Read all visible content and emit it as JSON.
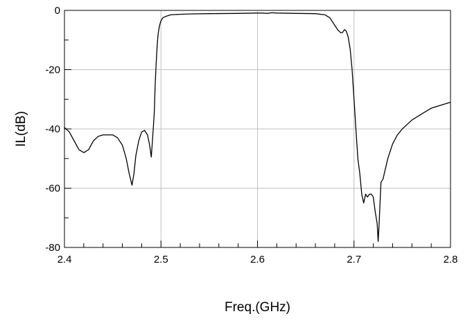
{
  "chart_data": {
    "type": "line",
    "xlabel": "Freq.(GHz)",
    "ylabel": "IL(dB)",
    "xlim": [
      2.4,
      2.8
    ],
    "ylim": [
      -80,
      0
    ],
    "xticks": [
      2.4,
      2.5,
      2.6,
      2.7,
      2.8
    ],
    "xtick_labels": [
      "2.4",
      "2.5",
      "2.6",
      "2.7",
      "2.8"
    ],
    "yticks": [
      0,
      -20,
      -40,
      -60,
      -80
    ],
    "ytick_labels": [
      "0",
      "-20",
      "-40",
      "-60",
      "-80"
    ],
    "grid": true,
    "line_color": "#000000",
    "grid_color": "#c0c0c0",
    "series": [
      {
        "x": [
          2.4,
          2.405,
          2.41,
          2.415,
          2.42,
          2.425,
          2.43,
          2.435,
          2.44,
          2.445,
          2.45,
          2.455,
          2.46,
          2.464,
          2.467,
          2.47,
          2.472,
          2.474,
          2.477,
          2.48,
          2.483,
          2.486,
          2.488,
          2.49,
          2.492,
          2.493,
          2.494,
          2.495,
          2.496,
          2.497,
          2.498,
          2.499,
          2.5,
          2.502,
          2.505,
          2.51,
          2.52,
          2.53,
          2.55,
          2.58,
          2.6,
          2.605,
          2.61,
          2.615,
          2.62,
          2.64,
          2.66,
          2.67,
          2.675,
          2.68,
          2.683,
          2.686,
          2.688,
          2.69,
          2.692,
          2.694,
          2.696,
          2.698,
          2.7,
          2.702,
          2.704,
          2.706,
          2.708,
          2.71,
          2.712,
          2.714,
          2.716,
          2.718,
          2.72,
          2.722,
          2.724,
          2.725,
          2.726,
          2.727,
          2.728,
          2.73,
          2.735,
          2.74,
          2.745,
          2.75,
          2.76,
          2.77,
          2.78,
          2.79,
          2.8
        ],
        "y": [
          -39.5,
          -41,
          -44,
          -47,
          -48,
          -47,
          -44,
          -42.5,
          -42,
          -42,
          -42,
          -43,
          -45.5,
          -50,
          -55,
          -59,
          -55,
          -49,
          -44,
          -41,
          -40.5,
          -42,
          -45,
          -49.5,
          -40,
          -35,
          -25,
          -18,
          -12,
          -8,
          -6,
          -4.5,
          -3.5,
          -2.5,
          -2,
          -1.5,
          -1.3,
          -1.2,
          -1.1,
          -1.0,
          -0.9,
          -0.9,
          -1.0,
          -0.8,
          -0.9,
          -1.0,
          -1.1,
          -1.5,
          -2.5,
          -5,
          -6.5,
          -7.5,
          -7.5,
          -6.5,
          -7,
          -9,
          -13,
          -20,
          -30,
          -40,
          -50,
          -55,
          -62,
          -65,
          -62,
          -63,
          -62,
          -62,
          -63,
          -68,
          -72,
          -78,
          -72,
          -65,
          -58,
          -57,
          -50,
          -45,
          -42,
          -40,
          -37,
          -35,
          -33,
          -32,
          -31
        ]
      }
    ]
  }
}
